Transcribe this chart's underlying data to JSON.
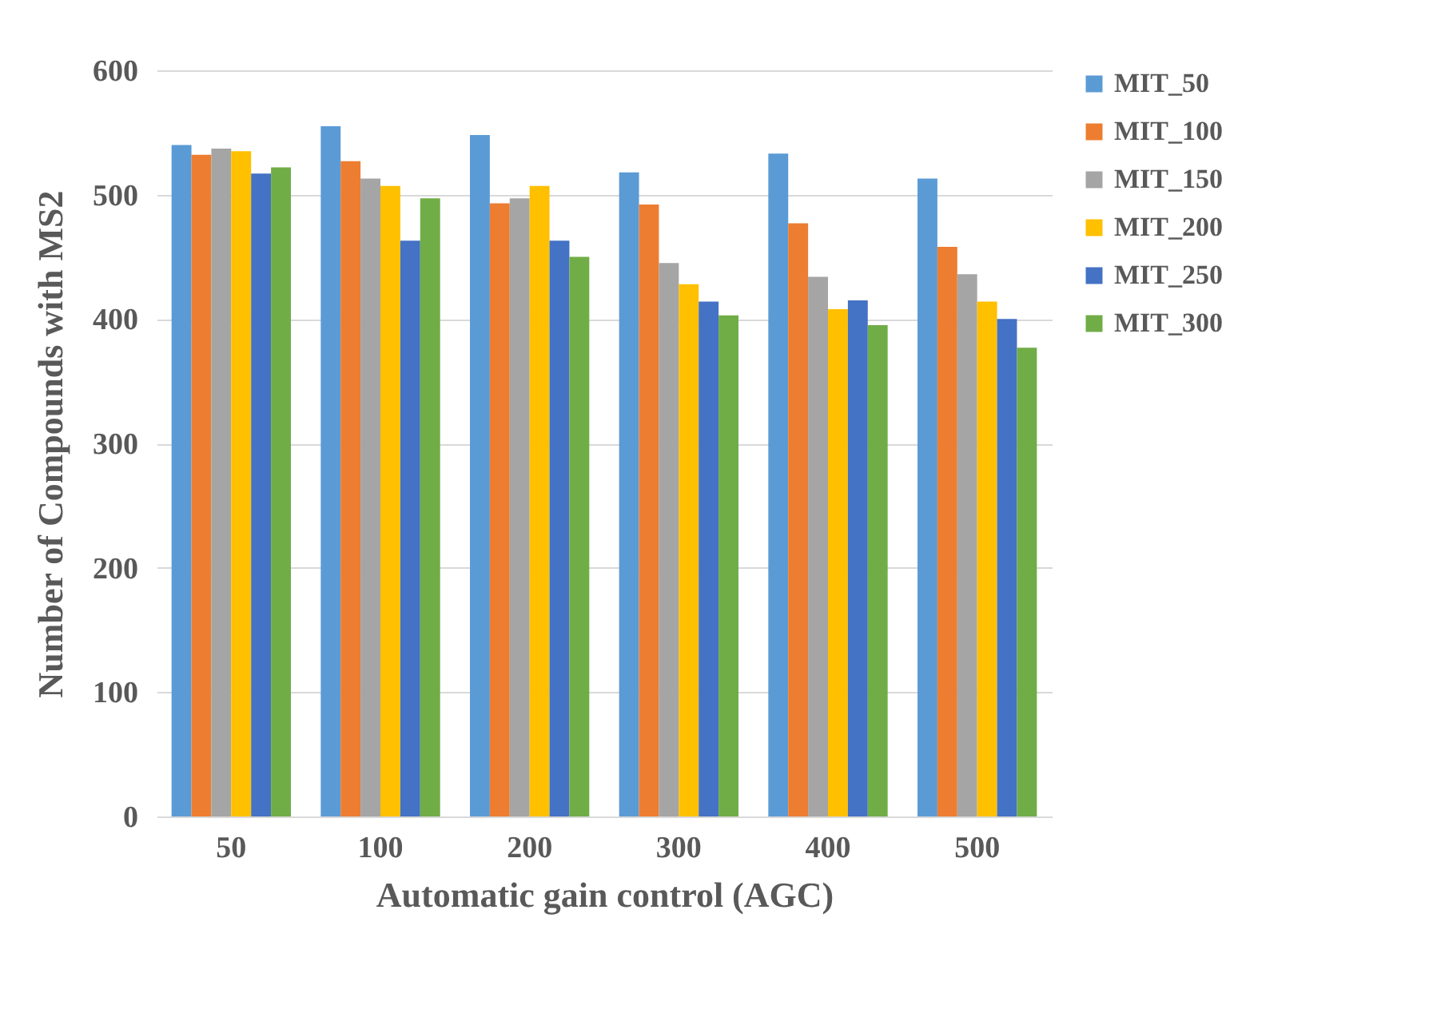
{
  "chart_data": {
    "type": "bar",
    "xlabel": "Automatic gain control (AGC)",
    "ylabel": "Number of Compounds with MS2",
    "categories": [
      "50",
      "100",
      "200",
      "300",
      "400",
      "500"
    ],
    "series": [
      {
        "name": "MIT_50",
        "color": "#5b9bd5",
        "values": [
          540,
          555,
          548,
          518,
          533,
          513
        ]
      },
      {
        "name": "MIT_100",
        "color": "#ed7d31",
        "values": [
          532,
          527,
          493,
          492,
          477,
          458
        ]
      },
      {
        "name": "MIT_150",
        "color": "#a5a5a5",
        "values": [
          537,
          513,
          497,
          445,
          434,
          436
        ]
      },
      {
        "name": "MIT_200",
        "color": "#ffc000",
        "values": [
          535,
          507,
          507,
          428,
          408,
          414
        ]
      },
      {
        "name": "MIT_250",
        "color": "#4472c4",
        "values": [
          517,
          463,
          463,
          414,
          415,
          400
        ]
      },
      {
        "name": "MIT_300",
        "color": "#70ad47",
        "values": [
          522,
          497,
          450,
          403,
          395,
          377
        ]
      }
    ],
    "ylim": [
      0,
      600
    ],
    "yticks": [
      0,
      100,
      200,
      300,
      400,
      500,
      600
    ],
    "grid": "y",
    "legend": "right"
  }
}
